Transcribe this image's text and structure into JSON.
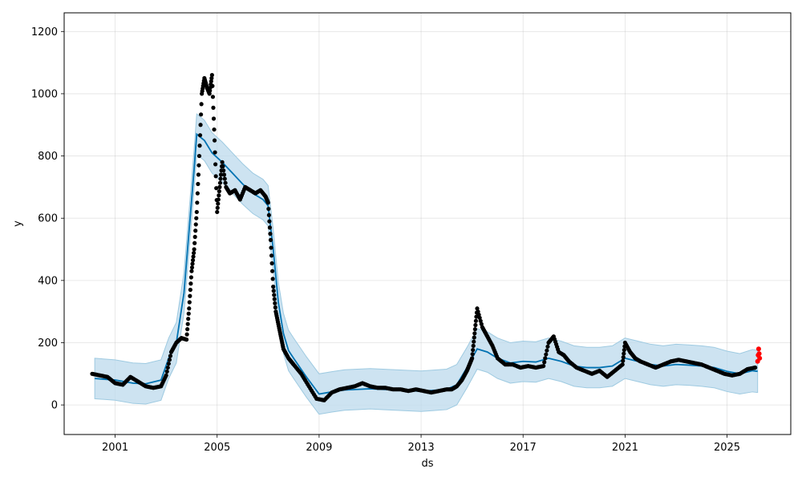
{
  "chart_data": {
    "type": "line",
    "title": "",
    "xlabel": "ds",
    "ylabel": "y",
    "x_ticks": [
      "2001",
      "2005",
      "2009",
      "2013",
      "2017",
      "2021",
      "2025"
    ],
    "y_ticks": [
      "0",
      "200",
      "400",
      "600",
      "800",
      "1000",
      "1200"
    ],
    "xlim": [
      1999.0,
      2027.5
    ],
    "ylim": [
      -95,
      1260
    ],
    "grid": true,
    "colors": {
      "observed": "#000000",
      "forecast": "#0072B2",
      "interval": "#bcd9ec",
      "interval_edge": "#9ecae1",
      "future": "#ff0000"
    },
    "series": [
      {
        "kind": "forecast",
        "x": [
          2000.2,
          2001.0,
          2001.7,
          2002.2,
          2002.8,
          2003.1,
          2003.4,
          2003.7,
          2003.9,
          2004.1,
          2004.2,
          2004.5,
          2004.8,
          2005.2,
          2005.6,
          2006.0,
          2006.4,
          2006.8,
          2007.0,
          2007.2,
          2007.4,
          2007.6,
          2007.8,
          2008.0,
          2008.5,
          2009.0,
          2009.5,
          2010.0,
          2010.5,
          2011.0,
          2011.5,
          2012.0,
          2012.5,
          2013.0,
          2013.5,
          2014.0,
          2014.4,
          2014.8,
          2015.2,
          2015.6,
          2016.0,
          2016.5,
          2017.0,
          2017.5,
          2018.0,
          2018.5,
          2019.0,
          2019.5,
          2020.0,
          2020.5,
          2021.0,
          2021.5,
          2022.0,
          2022.5,
          2023.0,
          2023.5,
          2024.0,
          2024.5,
          2025.0,
          2025.5,
          2026.0,
          2026.2
        ],
        "y": [
          85,
          80,
          70,
          68,
          80,
          150,
          200,
          360,
          560,
          760,
          870,
          850,
          810,
          780,
          745,
          710,
          680,
          660,
          640,
          500,
          330,
          230,
          175,
          150,
          90,
          35,
          42,
          48,
          50,
          52,
          50,
          48,
          46,
          44,
          47,
          50,
          65,
          120,
          180,
          170,
          150,
          135,
          140,
          138,
          150,
          140,
          125,
          120,
          120,
          125,
          150,
          140,
          130,
          125,
          130,
          128,
          125,
          120,
          108,
          100,
          110,
          108
        ]
      },
      {
        "kind": "interval",
        "x": [
          2000.2,
          2001.0,
          2001.7,
          2002.2,
          2002.8,
          2003.1,
          2003.4,
          2003.7,
          2003.9,
          2004.1,
          2004.2,
          2004.5,
          2004.8,
          2005.2,
          2005.6,
          2006.0,
          2006.4,
          2006.8,
          2007.0,
          2007.2,
          2007.4,
          2007.6,
          2007.8,
          2008.0,
          2008.5,
          2009.0,
          2009.5,
          2010.0,
          2010.5,
          2011.0,
          2011.5,
          2012.0,
          2012.5,
          2013.0,
          2013.5,
          2014.0,
          2014.4,
          2014.8,
          2015.2,
          2015.6,
          2016.0,
          2016.5,
          2017.0,
          2017.5,
          2018.0,
          2018.5,
          2019.0,
          2019.5,
          2020.0,
          2020.5,
          2021.0,
          2021.5,
          2022.0,
          2022.5,
          2023.0,
          2023.5,
          2024.0,
          2024.5,
          2025.0,
          2025.5,
          2026.0,
          2026.2
        ],
        "upper": [
          150,
          145,
          135,
          133,
          145,
          215,
          265,
          425,
          625,
          825,
          935,
          915,
          875,
          845,
          810,
          775,
          745,
          725,
          705,
          565,
          395,
          295,
          240,
          215,
          155,
          100,
          107,
          113,
          115,
          117,
          115,
          113,
          111,
          109,
          112,
          115,
          130,
          185,
          245,
          235,
          215,
          200,
          205,
          203,
          215,
          205,
          190,
          185,
          185,
          190,
          215,
          205,
          195,
          190,
          195,
          193,
          190,
          185,
          173,
          165,
          178,
          176
        ],
        "lower": [
          20,
          15,
          5,
          3,
          15,
          85,
          135,
          295,
          495,
          695,
          805,
          785,
          745,
          715,
          680,
          645,
          615,
          595,
          575,
          435,
          265,
          165,
          110,
          85,
          25,
          -30,
          -23,
          -17,
          -15,
          -13,
          -15,
          -17,
          -19,
          -21,
          -18,
          -15,
          0,
          55,
          115,
          105,
          85,
          70,
          75,
          73,
          85,
          75,
          60,
          55,
          55,
          60,
          85,
          75,
          65,
          60,
          65,
          63,
          60,
          55,
          43,
          35,
          42,
          40
        ]
      },
      {
        "kind": "observed",
        "x": [
          2000.1,
          2000.4,
          2000.7,
          2001.0,
          2001.3,
          2001.6,
          2001.9,
          2002.2,
          2002.5,
          2002.8,
          2003.0,
          2003.2,
          2003.4,
          2003.6,
          2003.8,
          2003.9,
          2004.0,
          2004.1,
          2004.2,
          2004.3,
          2004.4,
          2004.5,
          2004.6,
          2004.7,
          2004.8,
          2004.9,
          2005.0,
          2005.1,
          2005.2,
          2005.35,
          2005.5,
          2005.7,
          2005.9,
          2006.1,
          2006.3,
          2006.5,
          2006.7,
          2006.9,
          2007.0,
          2007.1,
          2007.2,
          2007.3,
          2007.4,
          2007.5,
          2007.6,
          2007.8,
          2008.0,
          2008.3,
          2008.6,
          2008.9,
          2009.2,
          2009.5,
          2009.8,
          2010.1,
          2010.4,
          2010.7,
          2011.0,
          2011.3,
          2011.6,
          2011.9,
          2012.2,
          2012.5,
          2012.8,
          2013.1,
          2013.4,
          2013.7,
          2014.0,
          2014.2,
          2014.4,
          2014.6,
          2014.8,
          2014.9,
          2015.0,
          2015.1,
          2015.2,
          2015.4,
          2015.6,
          2015.8,
          2016.0,
          2016.3,
          2016.6,
          2016.9,
          2017.2,
          2017.5,
          2017.8,
          2018.0,
          2018.2,
          2018.4,
          2018.6,
          2018.8,
          2019.1,
          2019.4,
          2019.7,
          2020.0,
          2020.3,
          2020.6,
          2020.9,
          2021.0,
          2021.2,
          2021.4,
          2021.6,
          2021.9,
          2022.2,
          2022.5,
          2022.8,
          2023.1,
          2023.4,
          2023.7,
          2024.0,
          2024.3,
          2024.6,
          2024.9,
          2025.2,
          2025.5,
          2025.8,
          2026.1
        ],
        "y": [
          100,
          95,
          90,
          70,
          65,
          90,
          75,
          60,
          55,
          60,
          95,
          170,
          200,
          215,
          210,
          310,
          430,
          500,
          620,
          800,
          1000,
          1050,
          1020,
          1000,
          1060,
          850,
          620,
          700,
          780,
          700,
          680,
          690,
          660,
          700,
          690,
          680,
          690,
          670,
          650,
          530,
          380,
          300,
          260,
          220,
          180,
          150,
          130,
          100,
          60,
          20,
          15,
          40,
          50,
          55,
          60,
          70,
          60,
          55,
          55,
          50,
          50,
          45,
          50,
          45,
          40,
          45,
          50,
          50,
          60,
          80,
          110,
          130,
          150,
          230,
          310,
          250,
          220,
          190,
          150,
          130,
          130,
          120,
          125,
          120,
          125,
          200,
          220,
          170,
          160,
          140,
          120,
          110,
          100,
          110,
          90,
          110,
          130,
          200,
          170,
          150,
          140,
          130,
          120,
          130,
          140,
          145,
          140,
          135,
          130,
          120,
          110,
          100,
          95,
          100,
          115,
          120
        ]
      },
      {
        "kind": "future",
        "x": [
          2026.2,
          2026.22,
          2026.24,
          2026.26,
          2026.28
        ],
        "y": [
          140,
          160,
          180,
          165,
          150
        ]
      }
    ]
  }
}
